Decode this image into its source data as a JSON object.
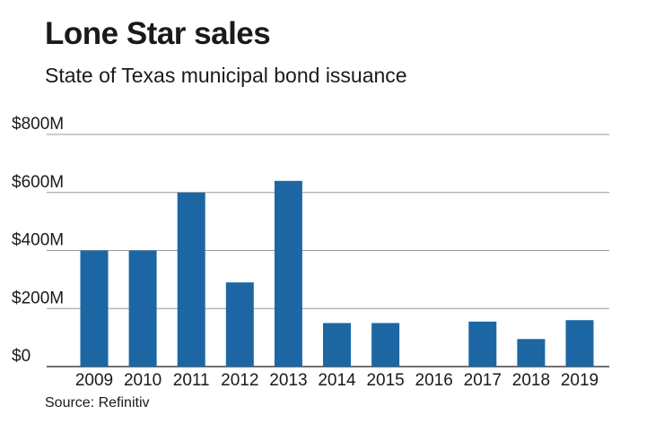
{
  "title": "Lone Star sales",
  "subtitle": "State of Texas municipal bond issuance",
  "source": "Source: Refinitiv",
  "colors": {
    "bar": "#1c67a3",
    "grid": "#9a9a9a",
    "axis": "#1a1a1a"
  },
  "chart_data": {
    "type": "bar",
    "title": "Lone Star sales",
    "subtitle": "State of Texas municipal bond issuance",
    "xlabel": "",
    "ylabel": "",
    "ylim": [
      0,
      800
    ],
    "yticks": [
      0,
      200,
      400,
      600,
      800
    ],
    "ytick_labels": [
      "$0",
      "$200M",
      "$400M",
      "$600M",
      "$800M"
    ],
    "categories": [
      "2009",
      "2010",
      "2011",
      "2012",
      "2013",
      "2014",
      "2015",
      "2016",
      "2017",
      "2018",
      "2019"
    ],
    "values": [
      400,
      400,
      600,
      290,
      640,
      150,
      150,
      0,
      155,
      95,
      160
    ],
    "units": "$M",
    "grid": true
  }
}
